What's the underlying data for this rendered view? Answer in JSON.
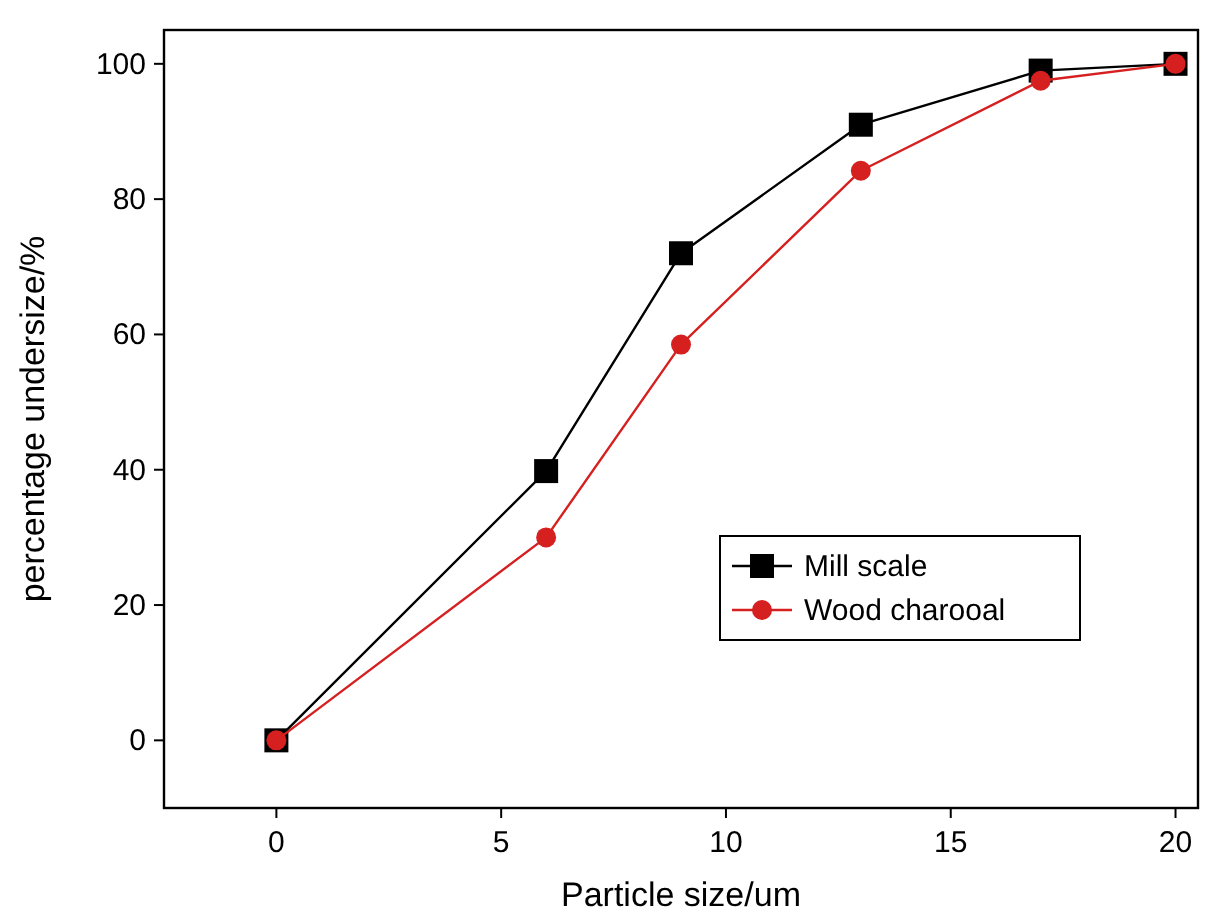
{
  "chart_data": {
    "type": "line",
    "xlabel": "Particle size/um",
    "ylabel": "percentage undersize/%",
    "x": [
      0,
      6,
      9,
      13,
      17,
      20
    ],
    "series": [
      {
        "name": "Mill scale",
        "color": "#000000",
        "marker": "square",
        "values": [
          0,
          39.8,
          72,
          91,
          99,
          100
        ]
      },
      {
        "name": "Wood charooal",
        "color": "#d62020",
        "marker": "circle",
        "values": [
          0,
          30,
          58.5,
          84.2,
          97.5,
          100
        ]
      }
    ],
    "xlim": [
      -2.5,
      20.5
    ],
    "xticks": [
      0,
      5,
      10,
      15,
      20
    ],
    "ylim": [
      -10,
      105
    ],
    "yticks": [
      0,
      20,
      40,
      60,
      80,
      100
    ],
    "legend": "bottom right",
    "grid": false,
    "line_style": "solid"
  }
}
